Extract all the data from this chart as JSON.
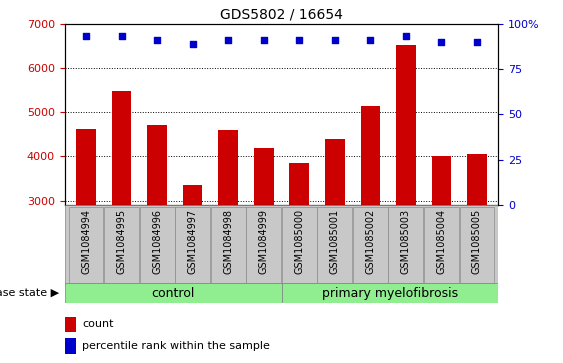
{
  "title": "GDS5802 / 16654",
  "samples": [
    "GSM1084994",
    "GSM1084995",
    "GSM1084996",
    "GSM1084997",
    "GSM1084998",
    "GSM1084999",
    "GSM1085000",
    "GSM1085001",
    "GSM1085002",
    "GSM1085003",
    "GSM1085004",
    "GSM1085005"
  ],
  "counts": [
    4630,
    5480,
    4720,
    3360,
    4590,
    4190,
    3840,
    4390,
    5130,
    6520,
    4020,
    4060
  ],
  "percentile_ranks": [
    93,
    93,
    91,
    89,
    91,
    91,
    91,
    91,
    91,
    93,
    90,
    90
  ],
  "ylim_left": [
    2900,
    7000
  ],
  "ylim_right": [
    0,
    100
  ],
  "yticks_left": [
    3000,
    4000,
    5000,
    6000,
    7000
  ],
  "yticks_right": [
    0,
    25,
    50,
    75,
    100
  ],
  "bar_color": "#cc0000",
  "dot_color": "#0000cc",
  "plot_bg": "#ffffff",
  "group_bg_color": "#90ee90",
  "x_tick_bg": "#c8c8c8",
  "n_control": 6,
  "n_myelo": 6,
  "control_label": "control",
  "myelofibrosis_label": "primary myelofibrosis",
  "group_label": "disease state",
  "legend_count_label": "count",
  "legend_pct_label": "percentile rank within the sample",
  "title_fontsize": 10,
  "axis_fontsize": 8,
  "tick_label_fontsize": 7
}
